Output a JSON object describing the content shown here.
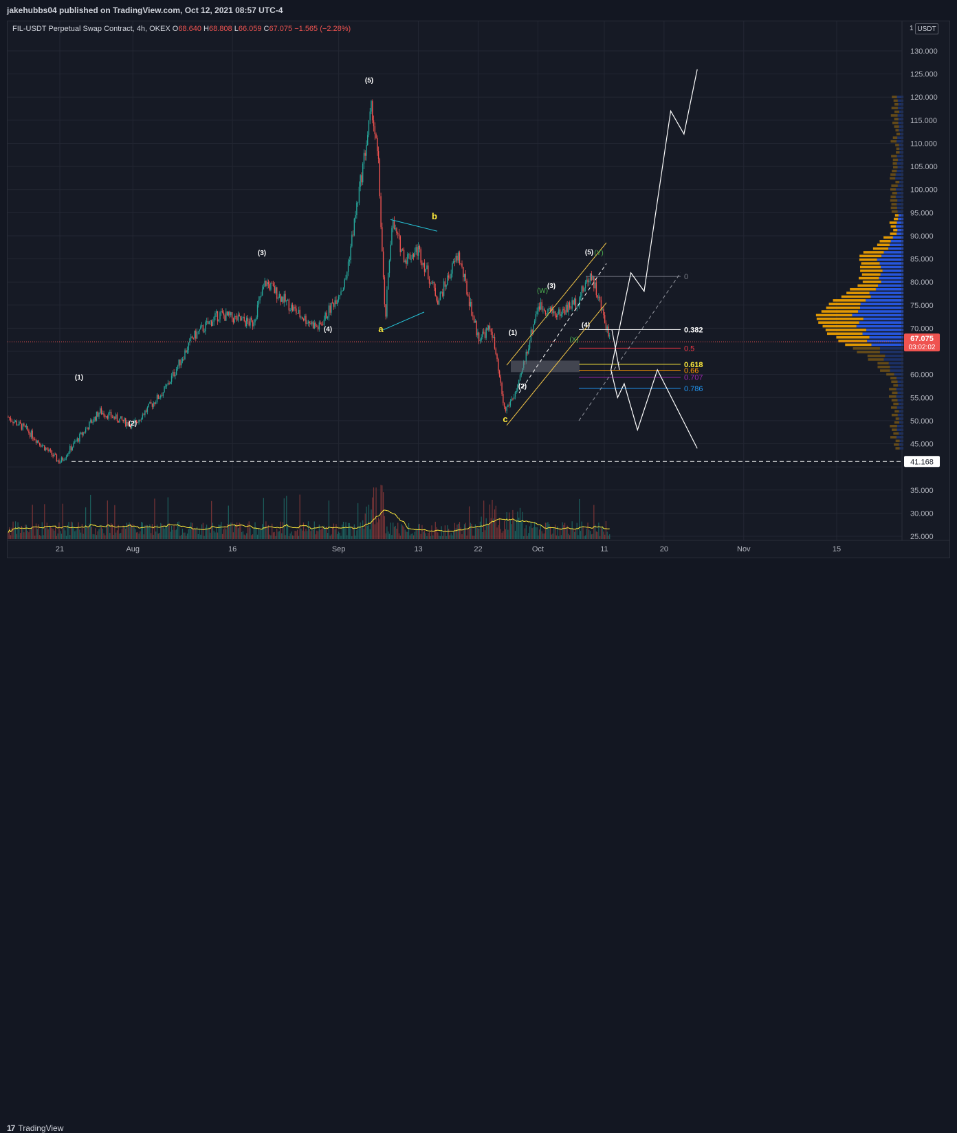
{
  "header": {
    "publisher": "jakehubbs04 published on TradingView.com, Oct 12, 2021 08:57 UTC-4"
  },
  "symbol_bar": {
    "symbol": "FIL-USDT Perpetual Swap Contract, 4h, OKEX",
    "open_label": "O",
    "open": "68.640",
    "high_label": "H",
    "high": "68.808",
    "low_label": "L",
    "low": "66.059",
    "close_label": "C",
    "close": "67.075",
    "change": "−1.565 (−2.28%)"
  },
  "currency": {
    "prefix": "1",
    "code": "USDT"
  },
  "footer": {
    "brand": "TradingView",
    "brand_mark": "17"
  },
  "colors": {
    "bg": "#161a25",
    "up": "#26a69a",
    "down": "#ef5350",
    "annot": "#ffeb3b",
    "volume_ma": "#ffeb3b",
    "fib_0": "#787b86",
    "fib_382": "#ffffff",
    "fib_05": "#f23645",
    "fib_618": "#ffeb3b",
    "fib_066": "#ff9800",
    "fib_0707": "#9c27b0",
    "fib_0786": "#2196f3",
    "vp_up": "#2962ff",
    "vp_down": "#f7a600"
  },
  "chart_data": {
    "type": "candlestick",
    "symbol": "FIL-USDT",
    "timeframe": "4h",
    "exchange": "OKEX",
    "y_axis": {
      "ticks": [
        "130.000",
        "125.000",
        "120.000",
        "115.000",
        "110.000",
        "105.000",
        "100.000",
        "95.000",
        "90.000",
        "85.000",
        "80.000",
        "75.000",
        "70.000",
        "65.000",
        "60.000",
        "55.000",
        "50.000",
        "45.000",
        "40.000",
        "35.000",
        "30.000",
        "25.000"
      ],
      "range": [
        21,
        133
      ]
    },
    "x_axis": {
      "ticks": [
        "21",
        "Aug",
        "16",
        "Sep",
        "13",
        "22",
        "Oct",
        "11",
        "20",
        "Nov",
        "15"
      ]
    },
    "price_path_dates": [
      "2021-07-12",
      "2021-07-16",
      "2021-07-21",
      "2021-07-27",
      "2021-08-01",
      "2021-08-06",
      "2021-08-10",
      "2021-08-14",
      "2021-08-19",
      "2021-08-21",
      "2021-08-26",
      "2021-08-29",
      "2021-09-02",
      "2021-09-06",
      "2021-09-07",
      "2021-09-08",
      "2021-09-09",
      "2021-09-11",
      "2021-09-13",
      "2021-09-16",
      "2021-09-19",
      "2021-09-22",
      "2021-09-24",
      "2021-09-26",
      "2021-09-28",
      "2021-10-01",
      "2021-10-04",
      "2021-10-07",
      "2021-10-09",
      "2021-10-11",
      "2021-10-12"
    ],
    "price_path_values": [
      52,
      48,
      41,
      52,
      49,
      57,
      68,
      73,
      71,
      80,
      73,
      70,
      80,
      118,
      105,
      71,
      93,
      85,
      87,
      76,
      86,
      68,
      70,
      52,
      57,
      75,
      73,
      76,
      82,
      72,
      67.075
    ],
    "last_price": {
      "value": "67.075",
      "countdown": "03:02:02"
    },
    "support_line": {
      "value": "41.168"
    },
    "wave_labels_white": [
      "(1)",
      "(2)",
      "(3)",
      "(4)",
      "(5)",
      "(1)",
      "(2)",
      "(3)",
      "(4)",
      "(5)"
    ],
    "wave_labels_yellow": [
      "a",
      "b",
      "c"
    ],
    "wave_labels_green": [
      "(W)",
      "(X)",
      "(Y)"
    ],
    "fib_levels": [
      {
        "label": "0",
        "value": 81.2
      },
      {
        "label": "0.382",
        "value": 69.7
      },
      {
        "label": "0.5",
        "value": 65.7
      },
      {
        "label": "0.618",
        "value": 62.2
      },
      {
        "label": "0.66",
        "value": 60.9
      },
      {
        "label": "0.707",
        "value": 59.4
      },
      {
        "label": "0.786",
        "value": 57.0
      }
    ],
    "projection_bull_dates": [
      "2021-10-12",
      "2021-10-15",
      "2021-10-17",
      "2021-10-21",
      "2021-10-23",
      "2021-10-25"
    ],
    "projection_bull_values": [
      61,
      82,
      78,
      117,
      112,
      126
    ],
    "projection_bear_dates": [
      "2021-10-12",
      "2021-10-13",
      "2021-10-14",
      "2021-10-16",
      "2021-10-19",
      "2021-10-25"
    ],
    "projection_bear_values": [
      61,
      55,
      58,
      48,
      61,
      44
    ]
  }
}
